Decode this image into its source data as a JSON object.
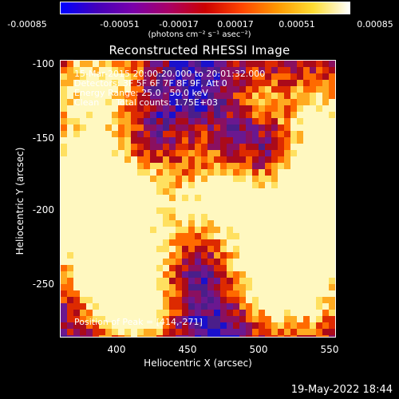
{
  "colorbar": {
    "ticks": [
      "-0.00085",
      "-0.00051",
      "-0.00017",
      "0.00017",
      "0.00051",
      "0.00085"
    ],
    "units": "(photons cm⁻² s⁻¹ asec⁻²)",
    "colors": [
      "#0000ff",
      "#4400bb",
      "#7a00aa",
      "#aa0066",
      "#cc0000",
      "#ff4400",
      "#ff9900",
      "#ffdd33",
      "#ffffff"
    ]
  },
  "title": "Reconstructed RHESSI Image",
  "info": {
    "time": "15-Mar-2015 20:00:20.000 to 20:01:32.000",
    "detectors": "Detectors: 3F 5F 6F 7F 8F 9F, Att 0",
    "energy": "Energy Range: 25.0 - 50.0 keV",
    "clean": "Clean      Total counts: 1.75E+03",
    "peak": "Position of Peak = [414,-271]"
  },
  "axes": {
    "xlabel": "Heliocentric X (arcsec)",
    "ylabel": "Heliocentric Y (arcsec)",
    "xticks": [
      "400",
      "450",
      "500",
      "550"
    ],
    "yticks": [
      "-100",
      "-150",
      "-200",
      "-250"
    ]
  },
  "timestamp": "19-May-2022 18:44"
}
